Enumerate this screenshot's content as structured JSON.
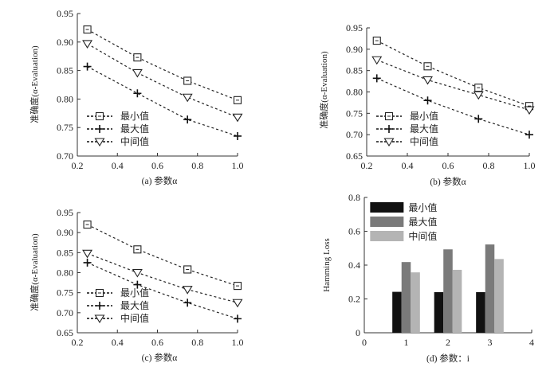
{
  "chart_data": [
    {
      "id": "a",
      "type": "line",
      "caption": "(a) 参数α",
      "ylabel": "准确度(α-Evaluation)",
      "x": [
        0.25,
        0.5,
        0.75,
        1.0
      ],
      "xlim": [
        0.2,
        1.0
      ],
      "ylim": [
        0.7,
        0.95
      ],
      "xticks": [
        "0.2",
        "0.4",
        "0.6",
        "0.8",
        "1.0"
      ],
      "yticks": [
        "0.70",
        "0.75",
        "0.80",
        "0.85",
        "0.90",
        "0.95"
      ],
      "series": [
        {
          "name": "最小值",
          "marker": "square",
          "values": [
            0.922,
            0.873,
            0.832,
            0.798
          ]
        },
        {
          "name": "最大值",
          "marker": "plus",
          "values": [
            0.857,
            0.81,
            0.764,
            0.735
          ]
        },
        {
          "name": "中间值",
          "marker": "triangle",
          "values": [
            0.897,
            0.846,
            0.803,
            0.768
          ]
        }
      ],
      "legend": "bottom-left"
    },
    {
      "id": "b",
      "type": "line",
      "caption": "(b) 参数α",
      "ylabel": "准确度(α-Evaluation)",
      "x": [
        0.25,
        0.5,
        0.75,
        1.0
      ],
      "xlim": [
        0.2,
        1.0
      ],
      "ylim": [
        0.65,
        0.95
      ],
      "xticks": [
        "0.2",
        "0.4",
        "0.6",
        "0.8",
        "1.0"
      ],
      "yticks": [
        "0.65",
        "0.70",
        "0.75",
        "0.80",
        "0.85",
        "0.90",
        "0.95"
      ],
      "series": [
        {
          "name": "最小值",
          "marker": "square",
          "values": [
            0.92,
            0.86,
            0.81,
            0.767
          ]
        },
        {
          "name": "最大值",
          "marker": "plus",
          "values": [
            0.832,
            0.78,
            0.737,
            0.7
          ]
        },
        {
          "name": "中间值",
          "marker": "triangle",
          "values": [
            0.875,
            0.828,
            0.793,
            0.758
          ]
        }
      ],
      "legend": "bottom-left"
    },
    {
      "id": "c",
      "type": "line",
      "caption": "(c) 参数α",
      "ylabel": "准确度(α-Evaluation)",
      "x": [
        0.25,
        0.5,
        0.75,
        1.0
      ],
      "xlim": [
        0.2,
        1.0
      ],
      "ylim": [
        0.65,
        0.95
      ],
      "xticks": [
        "0.2",
        "0.4",
        "0.6",
        "0.8",
        "1.0"
      ],
      "yticks": [
        "0.65",
        "0.70",
        "0.75",
        "0.80",
        "0.85",
        "0.90",
        "0.95"
      ],
      "series": [
        {
          "name": "最小值",
          "marker": "square",
          "values": [
            0.92,
            0.858,
            0.808,
            0.767
          ]
        },
        {
          "name": "最大值",
          "marker": "plus",
          "values": [
            0.825,
            0.77,
            0.725,
            0.685
          ]
        },
        {
          "name": "中间值",
          "marker": "triangle",
          "values": [
            0.848,
            0.8,
            0.758,
            0.725
          ]
        }
      ],
      "legend": "bottom-left"
    },
    {
      "id": "d",
      "type": "bar",
      "caption": "(d) 参数：i",
      "ylabel": "Hamming Loss",
      "categories": [
        1,
        2,
        3
      ],
      "xlim": [
        0,
        4
      ],
      "ylim": [
        0,
        0.8
      ],
      "xticks": [
        "0",
        "1",
        "2",
        "3",
        "4"
      ],
      "yticks": [
        "0",
        "0.2",
        "0.4",
        "0.6",
        "0.8"
      ],
      "series": [
        {
          "name": "最小值",
          "color": "#111111",
          "values": [
            0.242,
            0.24,
            0.24
          ]
        },
        {
          "name": "最大值",
          "color": "#7a7a7a",
          "values": [
            0.418,
            0.493,
            0.522
          ]
        },
        {
          "name": "中间值",
          "color": "#b4b4b4",
          "values": [
            0.357,
            0.372,
            0.436
          ]
        }
      ],
      "legend": "top-left"
    }
  ]
}
